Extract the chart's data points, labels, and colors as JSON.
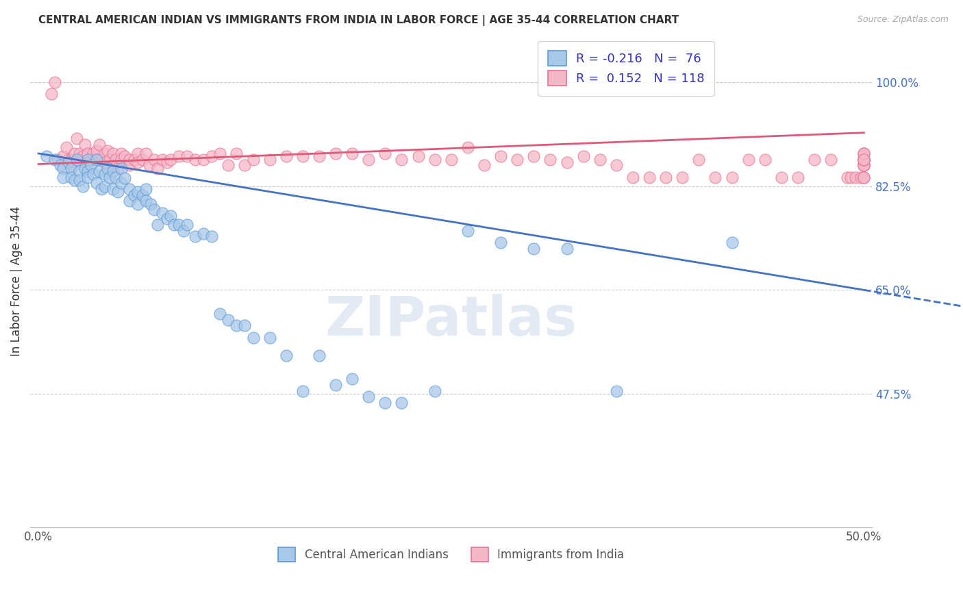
{
  "title": "CENTRAL AMERICAN INDIAN VS IMMIGRANTS FROM INDIA IN LABOR FORCE | AGE 35-44 CORRELATION CHART",
  "source": "Source: ZipAtlas.com",
  "ylabel": "In Labor Force | Age 35-44",
  "xlim": [
    -0.005,
    0.505
  ],
  "ylim": [
    0.25,
    1.08
  ],
  "xticks": [
    0.0,
    0.1,
    0.2,
    0.3,
    0.4,
    0.5
  ],
  "xtick_labels": [
    "0.0%",
    "",
    "",
    "",
    "",
    "50.0%"
  ],
  "ytick_positions": [
    0.475,
    0.65,
    0.825,
    1.0
  ],
  "ytick_labels": [
    "47.5%",
    "65.0%",
    "82.5%",
    "100.0%"
  ],
  "blue_color": "#a8c8e8",
  "pink_color": "#f4b8c8",
  "blue_edge_color": "#5b9bd5",
  "pink_edge_color": "#e87090",
  "blue_line_color": "#4472c4",
  "pink_line_color": "#e05878",
  "legend_R_blue": "-0.216",
  "legend_N_blue": "76",
  "legend_R_pink": "0.152",
  "legend_N_pink": "118",
  "blue_label": "Central American Indians",
  "pink_label": "Immigrants from India",
  "watermark": "ZIPatlas",
  "blue_trend_x": [
    0.0,
    0.5
  ],
  "blue_trend_y": [
    0.88,
    0.65
  ],
  "pink_trend_x": [
    0.0,
    0.5
  ],
  "pink_trend_y": [
    0.862,
    0.915
  ],
  "blue_scatter_x": [
    0.005,
    0.01,
    0.013,
    0.015,
    0.015,
    0.018,
    0.02,
    0.02,
    0.022,
    0.023,
    0.025,
    0.025,
    0.027,
    0.028,
    0.03,
    0.03,
    0.03,
    0.032,
    0.033,
    0.035,
    0.035,
    0.037,
    0.038,
    0.04,
    0.04,
    0.042,
    0.043,
    0.045,
    0.045,
    0.047,
    0.048,
    0.05,
    0.05,
    0.052,
    0.055,
    0.055,
    0.058,
    0.06,
    0.06,
    0.063,
    0.065,
    0.065,
    0.068,
    0.07,
    0.072,
    0.075,
    0.078,
    0.08,
    0.082,
    0.085,
    0.088,
    0.09,
    0.095,
    0.1,
    0.105,
    0.11,
    0.115,
    0.12,
    0.125,
    0.13,
    0.14,
    0.15,
    0.16,
    0.17,
    0.18,
    0.19,
    0.2,
    0.21,
    0.22,
    0.24,
    0.26,
    0.28,
    0.3,
    0.32,
    0.35,
    0.42
  ],
  "blue_scatter_y": [
    0.875,
    0.87,
    0.86,
    0.855,
    0.84,
    0.865,
    0.855,
    0.84,
    0.835,
    0.87,
    0.85,
    0.835,
    0.825,
    0.855,
    0.87,
    0.85,
    0.84,
    0.86,
    0.845,
    0.87,
    0.83,
    0.85,
    0.82,
    0.845,
    0.825,
    0.855,
    0.84,
    0.85,
    0.82,
    0.84,
    0.815,
    0.855,
    0.83,
    0.838,
    0.82,
    0.8,
    0.81,
    0.815,
    0.795,
    0.81,
    0.82,
    0.8,
    0.795,
    0.785,
    0.76,
    0.78,
    0.77,
    0.775,
    0.76,
    0.76,
    0.75,
    0.76,
    0.74,
    0.745,
    0.74,
    0.61,
    0.6,
    0.59,
    0.59,
    0.57,
    0.57,
    0.54,
    0.48,
    0.54,
    0.49,
    0.5,
    0.47,
    0.46,
    0.46,
    0.48,
    0.75,
    0.73,
    0.72,
    0.72,
    0.48,
    0.73
  ],
  "pink_scatter_x": [
    0.008,
    0.01,
    0.012,
    0.015,
    0.017,
    0.018,
    0.02,
    0.02,
    0.022,
    0.023,
    0.025,
    0.025,
    0.027,
    0.028,
    0.03,
    0.03,
    0.032,
    0.033,
    0.035,
    0.035,
    0.037,
    0.038,
    0.04,
    0.04,
    0.042,
    0.043,
    0.045,
    0.045,
    0.047,
    0.048,
    0.05,
    0.05,
    0.052,
    0.055,
    0.055,
    0.058,
    0.06,
    0.06,
    0.063,
    0.065,
    0.067,
    0.07,
    0.072,
    0.075,
    0.078,
    0.08,
    0.085,
    0.09,
    0.095,
    0.1,
    0.105,
    0.11,
    0.115,
    0.12,
    0.125,
    0.13,
    0.14,
    0.15,
    0.16,
    0.17,
    0.18,
    0.19,
    0.2,
    0.21,
    0.22,
    0.23,
    0.24,
    0.25,
    0.26,
    0.27,
    0.28,
    0.29,
    0.3,
    0.31,
    0.32,
    0.33,
    0.34,
    0.35,
    0.36,
    0.37,
    0.38,
    0.39,
    0.4,
    0.41,
    0.42,
    0.43,
    0.44,
    0.45,
    0.46,
    0.47,
    0.48,
    0.49,
    0.492,
    0.495,
    0.498,
    0.5,
    0.5,
    0.5,
    0.5,
    0.5,
    0.5,
    0.5,
    0.5,
    0.5,
    0.5,
    0.5,
    0.5,
    0.5,
    0.5,
    0.5,
    0.5,
    0.5,
    0.5,
    0.5,
    0.5,
    0.5,
    0.5,
    0.5
  ],
  "pink_scatter_y": [
    0.98,
    1.0,
    0.87,
    0.875,
    0.89,
    0.87,
    0.855,
    0.87,
    0.88,
    0.905,
    0.88,
    0.865,
    0.875,
    0.895,
    0.88,
    0.865,
    0.87,
    0.88,
    0.885,
    0.87,
    0.895,
    0.87,
    0.88,
    0.865,
    0.885,
    0.87,
    0.88,
    0.86,
    0.87,
    0.855,
    0.88,
    0.87,
    0.875,
    0.87,
    0.86,
    0.87,
    0.88,
    0.865,
    0.87,
    0.88,
    0.86,
    0.87,
    0.855,
    0.87,
    0.865,
    0.87,
    0.875,
    0.875,
    0.87,
    0.87,
    0.875,
    0.88,
    0.86,
    0.88,
    0.86,
    0.87,
    0.87,
    0.875,
    0.875,
    0.875,
    0.88,
    0.88,
    0.87,
    0.88,
    0.87,
    0.875,
    0.87,
    0.87,
    0.89,
    0.86,
    0.875,
    0.87,
    0.875,
    0.87,
    0.865,
    0.875,
    0.87,
    0.86,
    0.84,
    0.84,
    0.84,
    0.84,
    0.87,
    0.84,
    0.84,
    0.87,
    0.87,
    0.84,
    0.84,
    0.87,
    0.87,
    0.84,
    0.84,
    0.84,
    0.84,
    0.84,
    0.84,
    0.84,
    0.86,
    0.87,
    0.88,
    0.87,
    0.86,
    0.87,
    0.86,
    0.87,
    0.87,
    0.87,
    0.87,
    0.87,
    0.86,
    0.86,
    0.87,
    0.87,
    0.88,
    0.87,
    0.88,
    0.87
  ]
}
